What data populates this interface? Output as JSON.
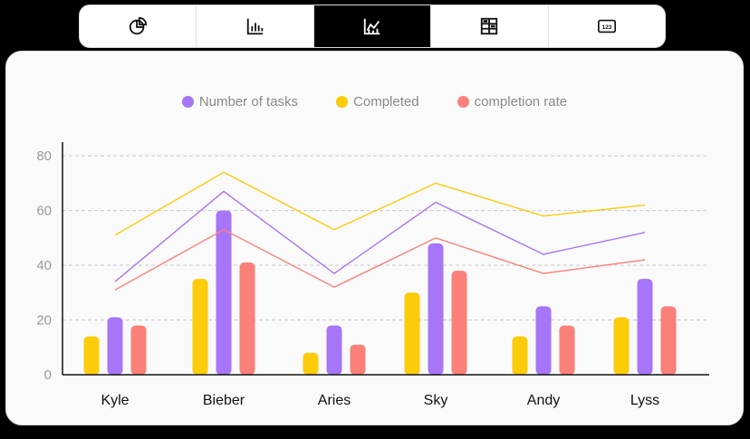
{
  "tabs": [
    {
      "icon": "pie-chart-icon",
      "active": false
    },
    {
      "icon": "bar-chart-icon",
      "active": false
    },
    {
      "icon": "line-chart-icon",
      "active": true
    },
    {
      "icon": "grid-table-icon",
      "active": false
    },
    {
      "icon": "number-123-icon",
      "active": false,
      "label": "123"
    }
  ],
  "colors": {
    "tasks": "#a775f7",
    "completed": "#fccb0a",
    "rate": "#fa8079",
    "grid": "#c9c9c9",
    "axis": "#111111",
    "tick": "#9a9a9a"
  },
  "chart_data": {
    "type": "bar",
    "categories": [
      "Kyle",
      "Bieber",
      "Aries",
      "Sky",
      "Andy",
      "Lyss"
    ],
    "ylim": [
      0,
      85
    ],
    "yticks": [
      0,
      20,
      40,
      60,
      80
    ],
    "grid": true,
    "legend_position": "top-center",
    "series": [
      {
        "name": "Number of tasks",
        "key": "tasks",
        "values": [
          21,
          60,
          18,
          48,
          25,
          35
        ],
        "line": [
          34,
          67,
          37,
          63,
          44,
          52
        ]
      },
      {
        "name": "Completed",
        "key": "completed",
        "values": [
          14,
          35,
          8,
          30,
          14,
          21
        ],
        "line": [
          51,
          74,
          53,
          70,
          58,
          62
        ]
      },
      {
        "name": "completion rate",
        "key": "rate",
        "values": [
          18,
          41,
          11,
          38,
          18,
          25
        ],
        "line": [
          31,
          53,
          32,
          50,
          37,
          42
        ]
      }
    ]
  }
}
